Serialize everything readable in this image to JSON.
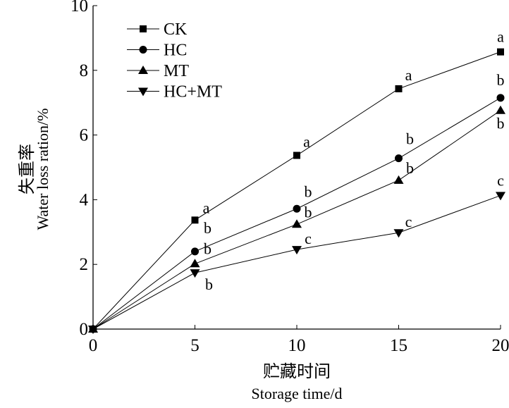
{
  "chart_data": {
    "type": "line",
    "xlabel_cn": "贮藏时间",
    "xlabel": "Storage time/d",
    "ylabel_cn": "失重率",
    "ylabel": "Water loss ration/%",
    "x": [
      0,
      5,
      10,
      15,
      20
    ],
    "xlim": [
      0,
      20
    ],
    "ylim": [
      0,
      10
    ],
    "xticks": [
      "0",
      "5",
      "10",
      "15",
      "20"
    ],
    "yticks": [
      "0",
      "2",
      "4",
      "6",
      "8",
      "10"
    ],
    "legend_position": "top-left",
    "series": [
      {
        "name": "CK",
        "marker": "square",
        "values": [
          0,
          3.37,
          5.37,
          7.43,
          8.57
        ],
        "letters": [
          "",
          "a",
          "a",
          "a",
          "a"
        ]
      },
      {
        "name": "HC",
        "marker": "circle",
        "values": [
          0,
          2.4,
          3.72,
          5.28,
          7.15
        ],
        "letters": [
          "",
          "b",
          "b",
          "b",
          "b"
        ]
      },
      {
        "name": "MT",
        "marker": "triangle-up",
        "values": [
          0,
          2.02,
          3.24,
          4.6,
          6.76
        ],
        "letters": [
          "",
          "b",
          "b",
          "b",
          "b"
        ]
      },
      {
        "name": "HC+MT",
        "marker": "triangle-down",
        "values": [
          0,
          1.74,
          2.46,
          2.98,
          4.13
        ],
        "letters": [
          "",
          "b",
          "c",
          "c",
          "c"
        ]
      }
    ]
  }
}
